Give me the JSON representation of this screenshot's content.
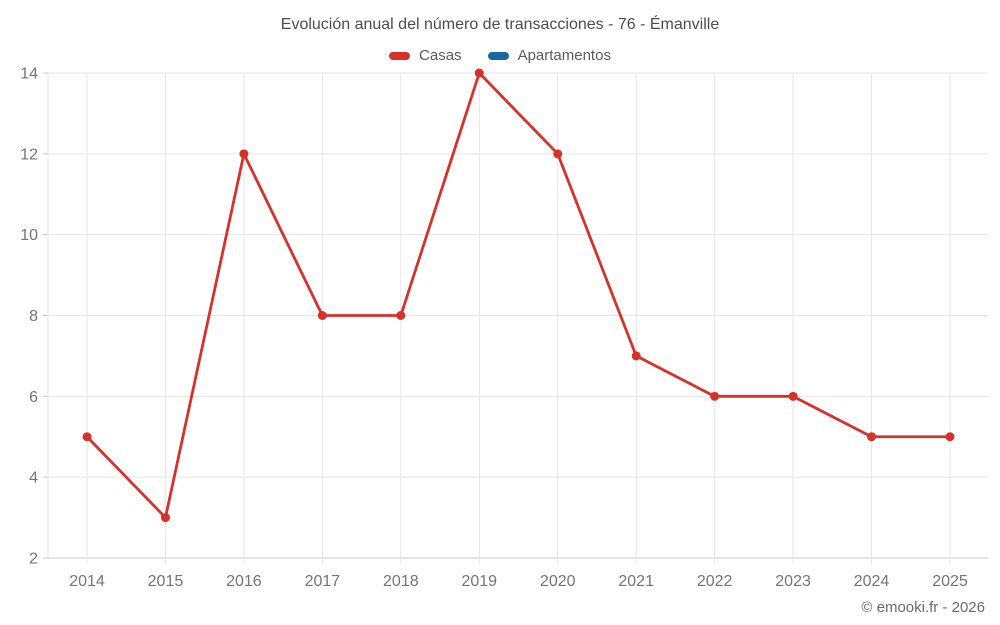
{
  "chart": {
    "title": "Evolución anual del número de transacciones - 76 - Émanville"
  },
  "footer": {
    "credit": "© emooki.fr - 2026"
  },
  "chart_data": {
    "type": "line",
    "title": "Evolución anual del número de transacciones - 76 - Émanville",
    "categories": [
      "2014",
      "2015",
      "2016",
      "2017",
      "2018",
      "2019",
      "2020",
      "2021",
      "2022",
      "2023",
      "2024",
      "2025"
    ],
    "series": [
      {
        "name": "Casas",
        "color": "#d6312b",
        "values": [
          5,
          3,
          12,
          8,
          8,
          14,
          12,
          7,
          6,
          6,
          5,
          5
        ]
      },
      {
        "name": "Apartamentos",
        "color": "#17699e",
        "values": []
      }
    ],
    "xlabel": "",
    "ylabel": "",
    "ylim": [
      2,
      14
    ],
    "yticks": [
      2,
      4,
      6,
      8,
      10,
      12,
      14
    ],
    "grid": true,
    "legend_position": "top"
  },
  "style_colors": {
    "grid": "#e6e6e6",
    "axis": "#c8c8c8",
    "tick_text": "#757575",
    "title_text": "#4d4d4d"
  }
}
